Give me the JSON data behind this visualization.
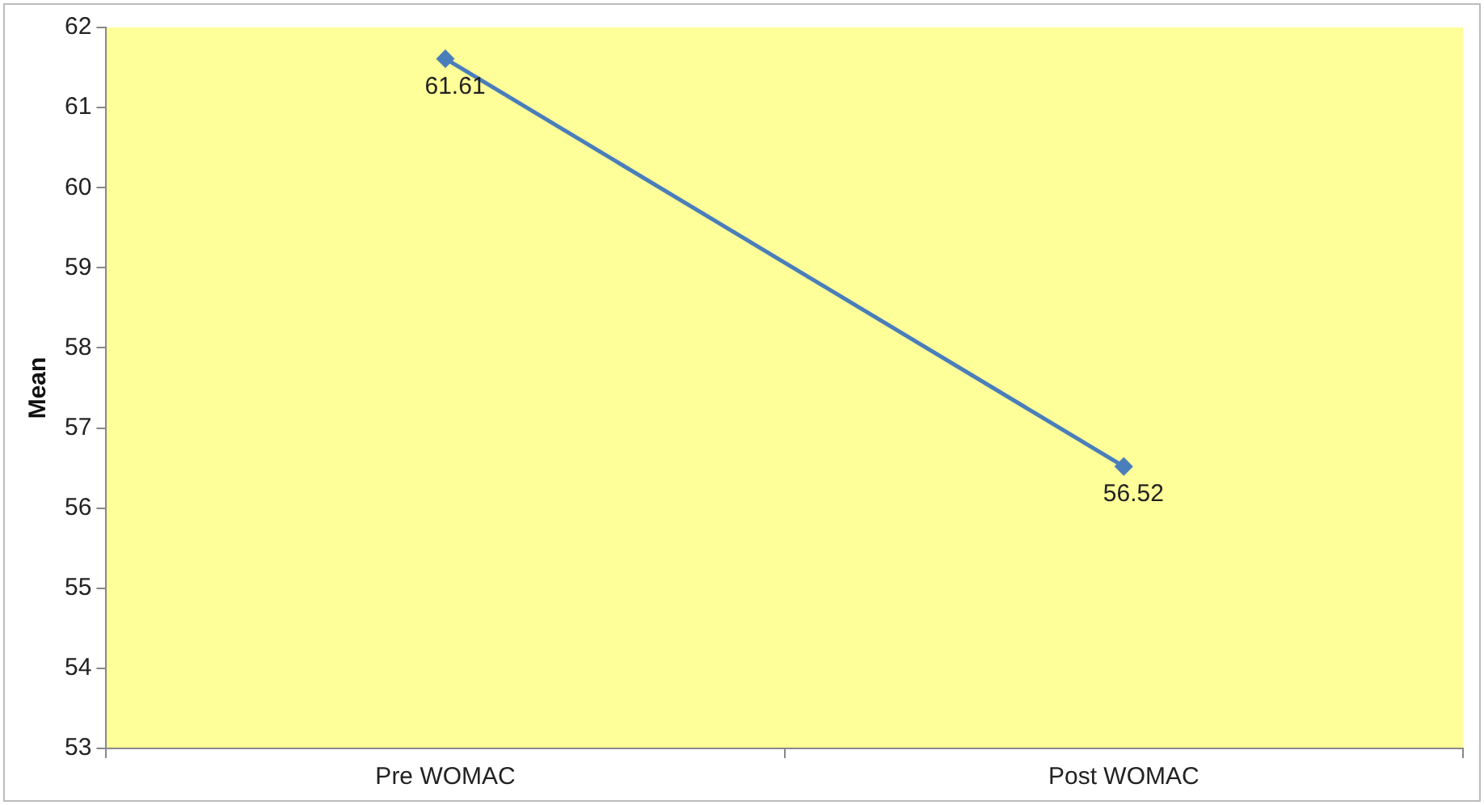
{
  "chart_data": {
    "type": "line",
    "ylabel": "Mean",
    "categories": [
      "Pre WOMAC",
      "Post WOMAC"
    ],
    "series": [
      {
        "color": "#4a7ebb",
        "values": [
          61.61,
          56.52
        ]
      }
    ],
    "ylim": [
      53,
      62
    ],
    "yticks": [
      53,
      54,
      55,
      56,
      57,
      58,
      59,
      60,
      61,
      62
    ],
    "grid": false,
    "legend": false,
    "marker": "diamond",
    "line_style": "solid",
    "data_labels": true
  }
}
